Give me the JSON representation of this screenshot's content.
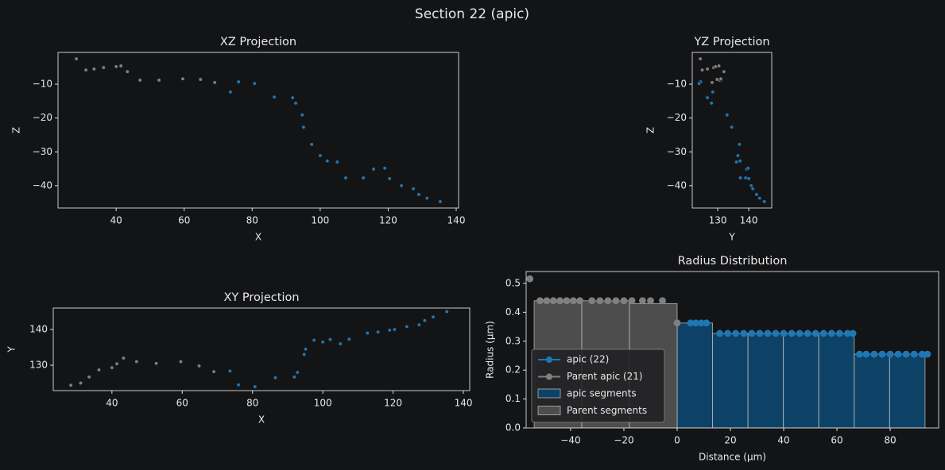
{
  "title": "Section 22 (apic)",
  "chart_data": [
    {
      "type": "line",
      "title": "XZ Projection",
      "xlabel": "X",
      "ylabel": "Z",
      "xlim": [
        22.9,
        140.7
      ],
      "ylim": [
        -46.6,
        -0.6
      ],
      "xticks": [
        40,
        60,
        80,
        100,
        120,
        140
      ],
      "yticks": [
        {
          "value": -10,
          "label": "−10"
        },
        {
          "value": -20,
          "label": "−20"
        },
        {
          "value": -30,
          "label": "−30"
        },
        {
          "value": -40,
          "label": "−40"
        }
      ],
      "series": [
        {
          "color": "#808080",
          "x": [
            28.3,
            31.1,
            33.5,
            36.3,
            40,
            41.4,
            43.3,
            47,
            52.6,
            59.6,
            64.8,
            69,
            73.6
          ],
          "values": [
            -2.5,
            -5.8,
            -5.5,
            -5.1,
            -4.8,
            -4.6,
            -6.3,
            -8.8,
            -8.8,
            -8.4,
            -8.6,
            -9.5,
            -12.3
          ]
        },
        {
          "color": "#1f77b4",
          "x": [
            73.6,
            76,
            80.7,
            86.5,
            91.9,
            92.8,
            94.7,
            95.1,
            97.5,
            100,
            102.1,
            105,
            107.5,
            112.7,
            115.7,
            119,
            120.4,
            123.9,
            127.4,
            129,
            131.4,
            135.3
          ],
          "values": [
            -12.3,
            -9.3,
            -9.8,
            -13.8,
            -14,
            -15.6,
            -19.1,
            -22.7,
            -27.8,
            -31.1,
            -32.7,
            -33,
            -37.7,
            -37.7,
            -35.1,
            -34.8,
            -37.9,
            -40,
            -40.9,
            -42.6,
            -43.7,
            -44.7
          ]
        }
      ]
    },
    {
      "type": "line",
      "title": "YZ Projection",
      "xlabel": "Y",
      "ylabel": "Z",
      "xlim": [
        121.8,
        147.4
      ],
      "ylim": [
        -46.6,
        -0.6
      ],
      "xticks": [
        130,
        140
      ],
      "yticks": [
        {
          "value": -10,
          "label": "−10"
        },
        {
          "value": -20,
          "label": "−20"
        },
        {
          "value": -30,
          "label": "−30"
        },
        {
          "value": -40,
          "label": "−40"
        }
      ],
      "series": [
        {
          "color": "#808080",
          "x": [
            124.4,
            125,
            126.7,
            128.7,
            129.3,
            130.4,
            132,
            131,
            130.5,
            131,
            129.8,
            128.2,
            128.4
          ],
          "values": [
            -2.5,
            -5.8,
            -5.5,
            -5.1,
            -4.8,
            -4.6,
            -6.3,
            -8.8,
            -8.8,
            -8.4,
            -8.6,
            -9.5,
            -12.3
          ]
        },
        {
          "color": "#1f77b4",
          "x": [
            128.4,
            124.5,
            124,
            126.5,
            126.7,
            128,
            133,
            134.5,
            137,
            136.5,
            137.2,
            136,
            137.3,
            139,
            139.3,
            139.8,
            140,
            140.8,
            141.3,
            142.5,
            143.5,
            145
          ],
          "values": [
            -12.3,
            -9.3,
            -9.8,
            -13.8,
            -14,
            -15.6,
            -19.1,
            -22.7,
            -27.8,
            -31.1,
            -32.7,
            -33,
            -37.7,
            -37.7,
            -35.1,
            -34.8,
            -37.9,
            -40,
            -40.9,
            -42.6,
            -43.7,
            -44.7
          ]
        }
      ]
    },
    {
      "type": "line",
      "title": "XY Projection",
      "xlabel": "X",
      "ylabel": "Y",
      "xlim": [
        23.3,
        141.8
      ],
      "ylim": [
        122.9,
        146
      ],
      "xticks": [
        40,
        60,
        80,
        100,
        120,
        140
      ],
      "yticks": [
        130,
        140
      ],
      "series": [
        {
          "color": "#808080",
          "x": [
            28.3,
            31.1,
            33.5,
            36.3,
            40,
            41.4,
            43.3,
            47,
            52.6,
            59.6,
            64.8,
            69,
            73.6
          ],
          "values": [
            124.4,
            125,
            126.7,
            128.7,
            129.3,
            130.4,
            132,
            131,
            130.5,
            131,
            129.8,
            128.2,
            128.4
          ]
        },
        {
          "color": "#1f77b4",
          "x": [
            73.6,
            76,
            80.7,
            86.5,
            91.9,
            92.8,
            94.7,
            95.1,
            97.5,
            100,
            102.1,
            105,
            107.5,
            112.7,
            115.7,
            119,
            120.4,
            123.9,
            127.4,
            129,
            131.4,
            135.3
          ],
          "values": [
            128.4,
            124.5,
            124,
            126.5,
            126.7,
            128,
            133,
            134.5,
            137,
            136.5,
            137.2,
            136,
            137.3,
            139,
            139.3,
            139.8,
            140,
            140.8,
            141.3,
            142.5,
            143.5,
            145
          ]
        }
      ]
    },
    {
      "type": "combo",
      "title": "Radius Distribution",
      "xlabel": "Distance (μm)",
      "ylabel": "Radius (μm)",
      "xlim": [
        -56.7,
        98.2
      ],
      "ylim": [
        0,
        0.541
      ],
      "xticks": [
        {
          "value": -40,
          "label": "−40"
        },
        {
          "value": -20,
          "label": "−20"
        },
        0,
        20,
        40,
        60,
        80
      ],
      "yticks": [
        {
          "value": 0,
          "label": "0.0"
        },
        0.1,
        0.2,
        0.3,
        0.4,
        0.5
      ],
      "legend": "lower left",
      "series": [
        {
          "name": "apic (22)",
          "type": "line",
          "color": "#1f77b4",
          "x": [
            0,
            5,
            7,
            9,
            11,
            16,
            19,
            22,
            25,
            28,
            31,
            34,
            37,
            40,
            43,
            46,
            49,
            52,
            55,
            58,
            61,
            64,
            66,
            68.5,
            71,
            74,
            77,
            80,
            83,
            86,
            89,
            92,
            94
          ],
          "values": [
            0.363,
            0.363,
            0.363,
            0.363,
            0.363,
            0.327,
            0.327,
            0.327,
            0.327,
            0.327,
            0.327,
            0.327,
            0.327,
            0.327,
            0.327,
            0.327,
            0.327,
            0.327,
            0.327,
            0.327,
            0.327,
            0.327,
            0.327,
            0.255,
            0.255,
            0.255,
            0.255,
            0.255,
            0.255,
            0.255,
            0.255,
            0.255,
            0.255
          ]
        },
        {
          "name": "Parent apic (21)",
          "type": "line",
          "color": "#808080",
          "x": [
            -55.3,
            -51.5,
            -49,
            -46.5,
            -44,
            -41.5,
            -39,
            -36.5,
            -32,
            -29,
            -26,
            -23,
            -20,
            -17,
            -13,
            -10,
            -5.5,
            0
          ],
          "values": [
            0.516,
            0.44,
            0.44,
            0.44,
            0.44,
            0.44,
            0.44,
            0.44,
            0.44,
            0.44,
            0.44,
            0.44,
            0.44,
            0.44,
            0.44,
            0.44,
            0.44,
            0.363
          ]
        },
        {
          "name": "apic segments",
          "type": "bar",
          "color": "#0d4266",
          "bins": [
            0,
            13.3,
            26.6,
            39.9,
            53.2,
            66.5,
            79.8,
            93.1
          ],
          "values": [
            0.363,
            0.327,
            0.327,
            0.327,
            0.327,
            0.255,
            0.255
          ]
        },
        {
          "name": "Parent segments",
          "type": "bar",
          "color": "#4d4d4d",
          "bins": [
            -53.7,
            -35.8,
            -17.9,
            0
          ],
          "values": [
            0.44,
            0.44,
            0.43
          ]
        }
      ]
    }
  ]
}
